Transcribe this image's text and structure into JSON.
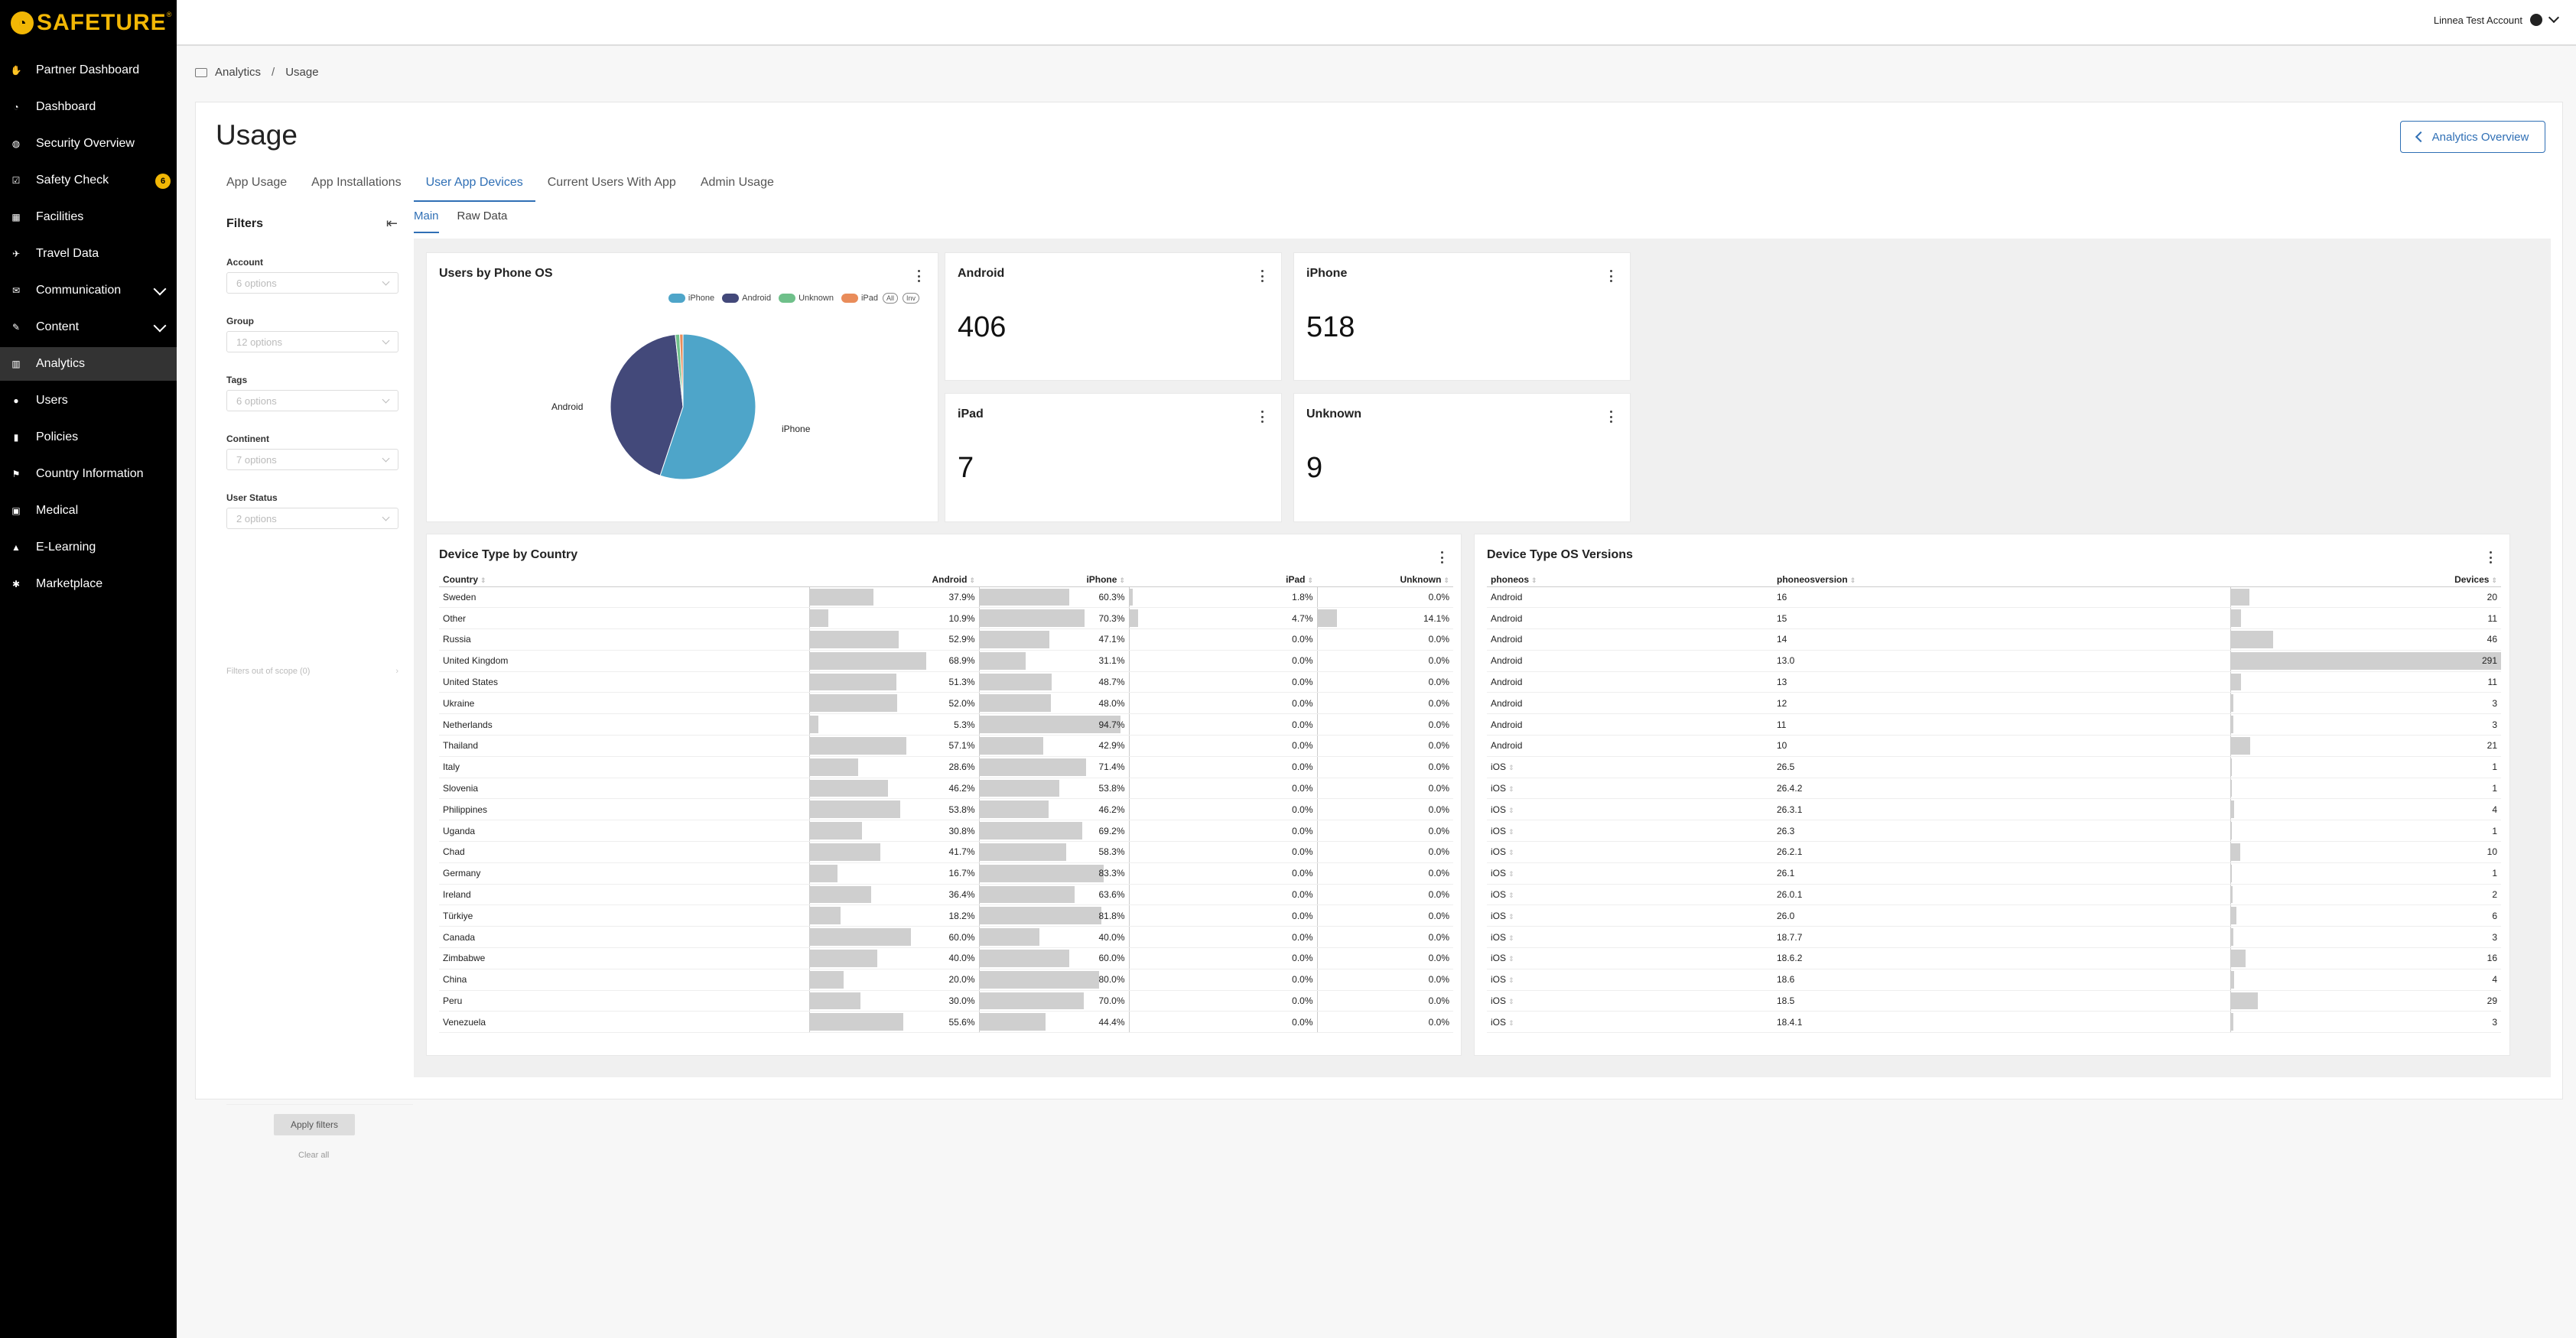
{
  "brand": {
    "name": "SAFETURE",
    "reg": "®",
    "accent": "#f2b705"
  },
  "sidebar": {
    "items": [
      {
        "label": "Partner Dashboard",
        "icon": "handshake-icon"
      },
      {
        "label": "Dashboard",
        "icon": "gauge-icon"
      },
      {
        "label": "Security Overview",
        "icon": "globe-icon"
      },
      {
        "label": "Safety Check",
        "icon": "check-square-icon",
        "badge": "6"
      },
      {
        "label": "Facilities",
        "icon": "building-icon"
      },
      {
        "label": "Travel Data",
        "icon": "plane-icon"
      },
      {
        "label": "Communication",
        "icon": "chat-icon",
        "expandable": true
      },
      {
        "label": "Content",
        "icon": "pencil-icon",
        "expandable": true
      },
      {
        "label": "Analytics",
        "icon": "chart-icon",
        "active": true
      },
      {
        "label": "Users",
        "icon": "user-icon"
      },
      {
        "label": "Policies",
        "icon": "book-icon"
      },
      {
        "label": "Country Information",
        "icon": "flag-icon"
      },
      {
        "label": "Medical",
        "icon": "medkit-icon"
      },
      {
        "label": "E-Learning",
        "icon": "graduation-cap-icon"
      },
      {
        "label": "Marketplace",
        "icon": "puzzle-icon"
      }
    ]
  },
  "topbar": {
    "account": "Linnea Test Account"
  },
  "breadcrumb": {
    "root": "Analytics",
    "sep": "/",
    "current": "Usage"
  },
  "page": {
    "title": "Usage",
    "overview_button": "Analytics Overview"
  },
  "tabs": [
    {
      "label": "App Usage"
    },
    {
      "label": "App Installations"
    },
    {
      "label": "User App Devices",
      "active": true
    },
    {
      "label": "Current Users With App"
    },
    {
      "label": "Admin Usage"
    }
  ],
  "filters": {
    "title": "Filters",
    "fields": [
      {
        "label": "Account",
        "value": "6 options"
      },
      {
        "label": "Group",
        "value": "12 options"
      },
      {
        "label": "Tags",
        "value": "6 options"
      },
      {
        "label": "Continent",
        "value": "7 options"
      },
      {
        "label": "User Status",
        "value": "2 options"
      }
    ],
    "out_of_scope": "Filters out of scope (0)",
    "apply": "Apply filters",
    "clear": "Clear all"
  },
  "subtabs": [
    {
      "label": "Main",
      "active": true
    },
    {
      "label": "Raw Data"
    }
  ],
  "pie": {
    "title": "Users by Phone OS",
    "legend": [
      {
        "label": "iPhone",
        "color": "#4ea5c9"
      },
      {
        "label": "Android",
        "color": "#43497a"
      },
      {
        "label": "Unknown",
        "color": "#6fc08a"
      },
      {
        "label": "iPad",
        "color": "#e98c5a"
      }
    ],
    "legend_buttons": [
      "All",
      "Inv"
    ],
    "labels": {
      "android": "Android",
      "iphone": "iPhone"
    }
  },
  "kpis": [
    {
      "title": "Android",
      "value": "406"
    },
    {
      "title": "iPhone",
      "value": "518"
    },
    {
      "title": "iPad",
      "value": "7"
    },
    {
      "title": "Unknown",
      "value": "9"
    }
  ],
  "chart_data": {
    "type": "pie",
    "title": "Users by Phone OS",
    "slices": [
      {
        "label": "iPhone",
        "value": 518
      },
      {
        "label": "Android",
        "value": 406
      },
      {
        "label": "Unknown",
        "value": 9
      },
      {
        "label": "iPad",
        "value": 7
      }
    ]
  },
  "country_table": {
    "title": "Device Type by Country",
    "headers": [
      "Country",
      "Android",
      "iPhone",
      "iPad",
      "Unknown"
    ],
    "rows": [
      [
        "Sweden",
        "37.9%",
        "60.3%",
        "1.8%",
        "0.0%"
      ],
      [
        "Other",
        "10.9%",
        "70.3%",
        "4.7%",
        "14.1%"
      ],
      [
        "Russia",
        "52.9%",
        "47.1%",
        "0.0%",
        "0.0%"
      ],
      [
        "United Kingdom",
        "68.9%",
        "31.1%",
        "0.0%",
        "0.0%"
      ],
      [
        "United States",
        "51.3%",
        "48.7%",
        "0.0%",
        "0.0%"
      ],
      [
        "Ukraine",
        "52.0%",
        "48.0%",
        "0.0%",
        "0.0%"
      ],
      [
        "Netherlands",
        "5.3%",
        "94.7%",
        "0.0%",
        "0.0%"
      ],
      [
        "Thailand",
        "57.1%",
        "42.9%",
        "0.0%",
        "0.0%"
      ],
      [
        "Italy",
        "28.6%",
        "71.4%",
        "0.0%",
        "0.0%"
      ],
      [
        "Slovenia",
        "46.2%",
        "53.8%",
        "0.0%",
        "0.0%"
      ],
      [
        "Philippines",
        "53.8%",
        "46.2%",
        "0.0%",
        "0.0%"
      ],
      [
        "Uganda",
        "30.8%",
        "69.2%",
        "0.0%",
        "0.0%"
      ],
      [
        "Chad",
        "41.7%",
        "58.3%",
        "0.0%",
        "0.0%"
      ],
      [
        "Germany",
        "16.7%",
        "83.3%",
        "0.0%",
        "0.0%"
      ],
      [
        "Ireland",
        "36.4%",
        "63.6%",
        "0.0%",
        "0.0%"
      ],
      [
        "Türkiye",
        "18.2%",
        "81.8%",
        "0.0%",
        "0.0%"
      ],
      [
        "Canada",
        "60.0%",
        "40.0%",
        "0.0%",
        "0.0%"
      ],
      [
        "Zimbabwe",
        "40.0%",
        "60.0%",
        "0.0%",
        "0.0%"
      ],
      [
        "China",
        "20.0%",
        "80.0%",
        "0.0%",
        "0.0%"
      ],
      [
        "Peru",
        "30.0%",
        "70.0%",
        "0.0%",
        "0.0%"
      ],
      [
        "Venezuela",
        "55.6%",
        "44.4%",
        "0.0%",
        "0.0%"
      ]
    ]
  },
  "os_table": {
    "title": "Device Type OS Versions",
    "headers": [
      "phoneos",
      "phoneosversion",
      "Devices"
    ],
    "rows": [
      [
        "Android",
        "16",
        "20"
      ],
      [
        "Android",
        "15",
        "11"
      ],
      [
        "Android",
        "14",
        "46"
      ],
      [
        "Android",
        "13.0",
        "291"
      ],
      [
        "Android",
        "13",
        "11"
      ],
      [
        "Android",
        "12",
        "3"
      ],
      [
        "Android",
        "11",
        "3"
      ],
      [
        "Android",
        "10",
        "21"
      ],
      [
        "iOS",
        "26.5",
        "1"
      ],
      [
        "iOS",
        "26.4.2",
        "1"
      ],
      [
        "iOS",
        "26.3.1",
        "4"
      ],
      [
        "iOS",
        "26.3",
        "1"
      ],
      [
        "iOS",
        "26.2.1",
        "10"
      ],
      [
        "iOS",
        "26.1",
        "1"
      ],
      [
        "iOS",
        "26.0.1",
        "2"
      ],
      [
        "iOS",
        "26.0",
        "6"
      ],
      [
        "iOS",
        "18.7.7",
        "3"
      ],
      [
        "iOS",
        "18.6.2",
        "16"
      ],
      [
        "iOS",
        "18.6",
        "4"
      ],
      [
        "iOS",
        "18.5",
        "29"
      ],
      [
        "iOS",
        "18.4.1",
        "3"
      ]
    ]
  }
}
